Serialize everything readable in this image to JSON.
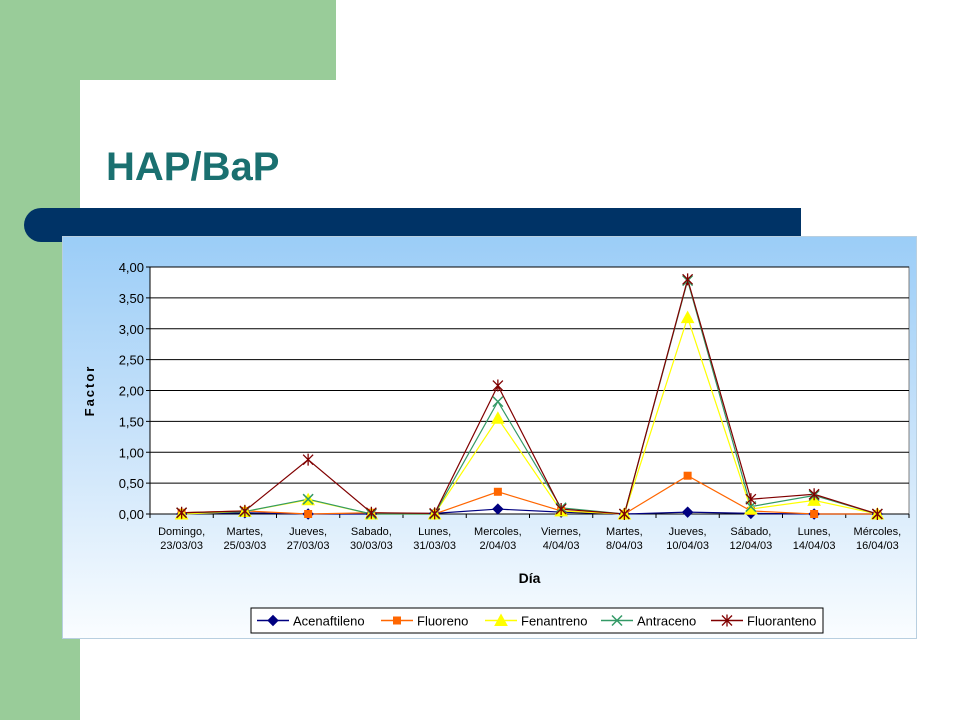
{
  "slide": {
    "title": "HAP/BaP",
    "colors": {
      "green": "#99cc99",
      "navy": "#003366",
      "title": "#1a7070"
    }
  },
  "chart_data": {
    "type": "line",
    "title": "",
    "xlabel": "Día",
    "ylabel": "Factor",
    "ylim": [
      0,
      4
    ],
    "y_ticks": [
      "0,00",
      "0,50",
      "1,00",
      "1,50",
      "2,00",
      "2,50",
      "3,00",
      "3,50",
      "4,00"
    ],
    "grid": true,
    "legend_position": "bottom",
    "categories": [
      [
        "Domingo,",
        "23/03/03"
      ],
      [
        "Martes,",
        "25/03/03"
      ],
      [
        "Jueves,",
        "27/03/03"
      ],
      [
        "Sabado,",
        "30/03/03"
      ],
      [
        "Lunes,",
        "31/03/03"
      ],
      [
        "Mercoles,",
        "2/04/03"
      ],
      [
        "Viernes,",
        "4/04/03"
      ],
      [
        "Martes,",
        "8/04/03"
      ],
      [
        "Jueves,",
        "10/04/03"
      ],
      [
        "Sábado,",
        "12/04/03"
      ],
      [
        "Lunes,",
        "14/04/03"
      ],
      [
        "Mércoles,",
        "16/04/03"
      ]
    ],
    "series": [
      {
        "name": "Acenaftileno",
        "color": "#000080",
        "marker": "diamond",
        "values": [
          0.0,
          0.02,
          0.0,
          0.0,
          0.01,
          0.08,
          0.03,
          0.0,
          0.03,
          0.01,
          0.0,
          0.0
        ]
      },
      {
        "name": "Fluoreno",
        "color": "#ff6600",
        "marker": "square",
        "values": [
          0.02,
          0.05,
          0.0,
          0.02,
          0.0,
          0.36,
          0.05,
          0.0,
          0.62,
          0.05,
          0.0,
          0.0
        ]
      },
      {
        "name": "Fenantreno",
        "color": "#ffff00",
        "marker": "triangle",
        "values": [
          0.0,
          0.04,
          0.23,
          0.0,
          0.0,
          1.55,
          0.05,
          0.0,
          3.18,
          0.08,
          0.22,
          0.0
        ]
      },
      {
        "name": "Antraceno",
        "color": "#339966",
        "marker": "x",
        "values": [
          0.02,
          0.04,
          0.24,
          0.0,
          0.0,
          1.82,
          0.1,
          0.0,
          3.78,
          0.12,
          0.3,
          0.0
        ]
      },
      {
        "name": "Fluoranteno",
        "color": "#800000",
        "marker": "star",
        "values": [
          0.02,
          0.05,
          0.88,
          0.02,
          0.01,
          2.08,
          0.08,
          0.0,
          3.8,
          0.24,
          0.32,
          0.0
        ]
      }
    ]
  }
}
